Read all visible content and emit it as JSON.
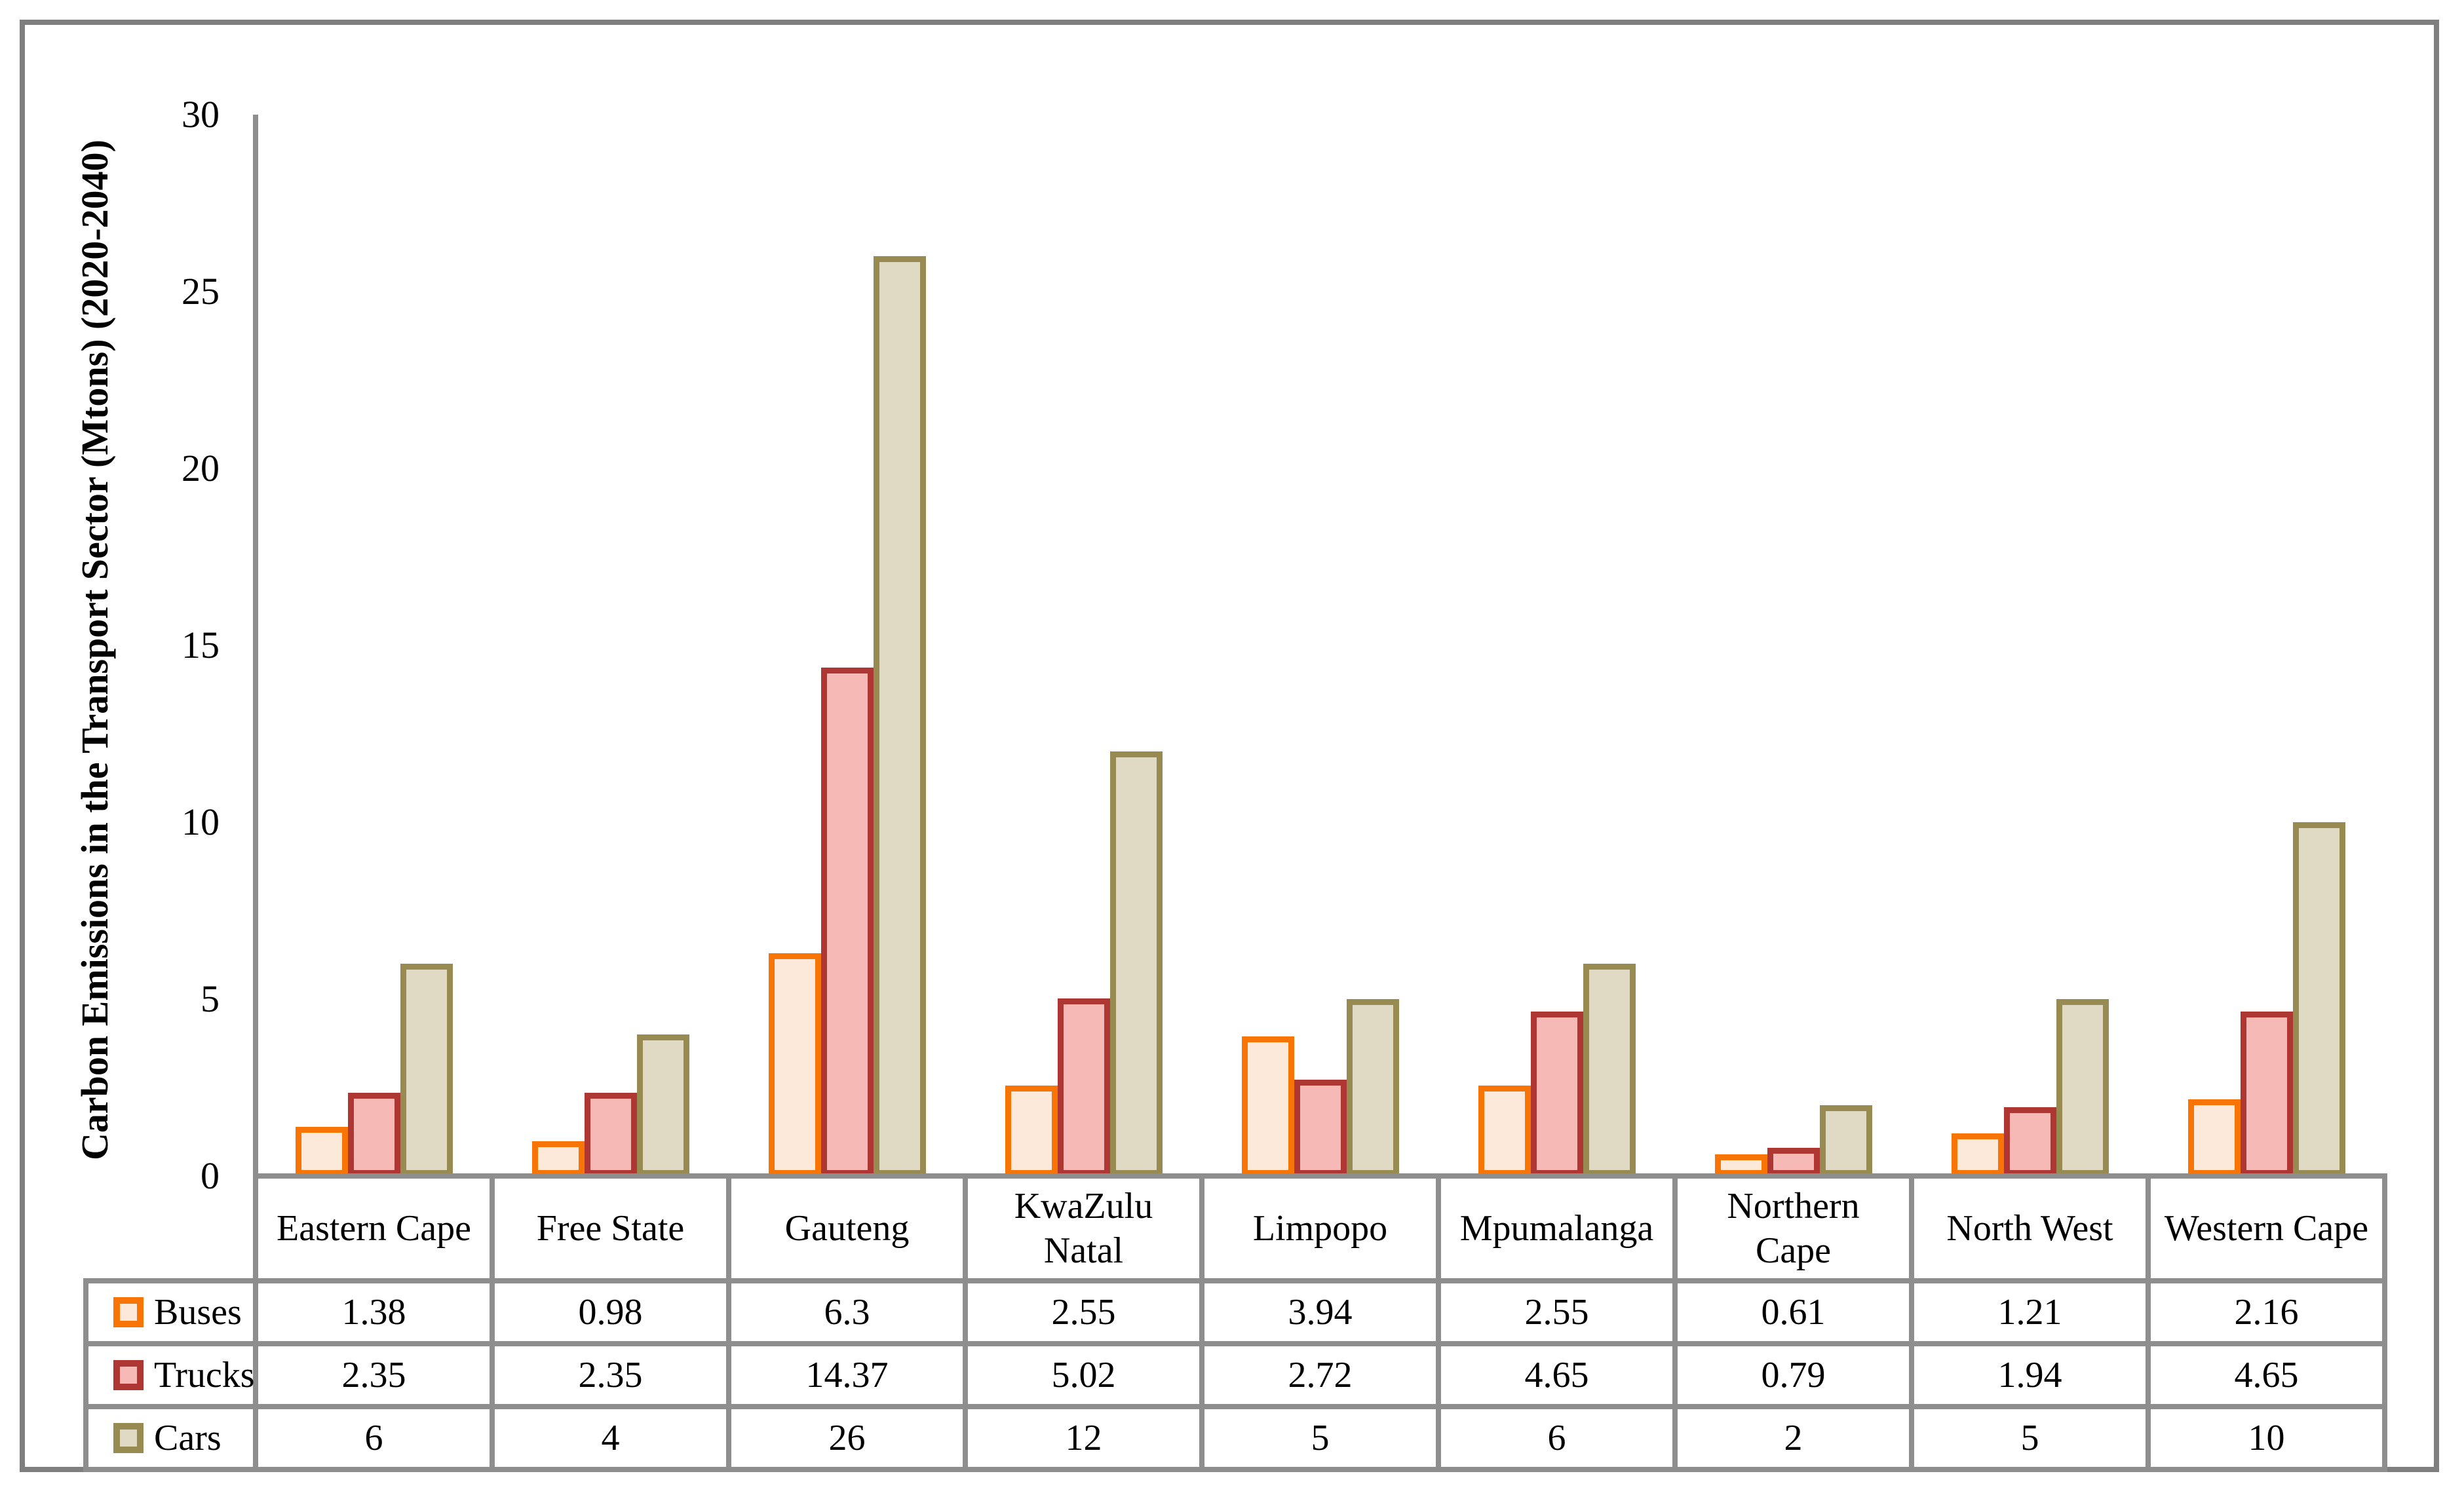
{
  "figure": {
    "y_axis_title": "Carbon Emissions in the Transport Sector (Mtons) (2020-2040)",
    "y_ticks": [
      0,
      5,
      10,
      15,
      20,
      25,
      30
    ],
    "category_labels": [
      "Eastern Cape",
      "Free State",
      "Gauteng",
      "KwaZulu\nNatal",
      "Limpopo",
      "Mpumalanga",
      "Northern\nCape",
      "North West",
      "Western Cape"
    ]
  },
  "chart_data": {
    "type": "bar",
    "title": "",
    "xlabel": "",
    "ylabel": "Carbon Emissions in the Transport Sector (Mtons) (2020-2040)",
    "ylim": [
      0,
      30
    ],
    "grid": false,
    "legend_position": "table-left",
    "categories": [
      "Eastern Cape",
      "Free State",
      "Gauteng",
      "KwaZulu Natal",
      "Limpopo",
      "Mpumalanga",
      "Northern Cape",
      "North West",
      "Western Cape"
    ],
    "series": [
      {
        "name": "Buses",
        "values": [
          1.38,
          0.98,
          6.3,
          2.55,
          3.94,
          2.55,
          0.61,
          1.21,
          2.16
        ],
        "border_color": "#f87505",
        "fill_color": "#fde9da"
      },
      {
        "name": "Trucks",
        "values": [
          2.35,
          2.35,
          14.37,
          5.02,
          2.72,
          4.65,
          0.79,
          1.94,
          4.65
        ],
        "border_color": "#ae3733",
        "fill_color": "#f6b9b5"
      },
      {
        "name": "Cars",
        "values": [
          6,
          4,
          26,
          12,
          5,
          6,
          2,
          5,
          10
        ],
        "border_color": "#988b52",
        "fill_color": "#e0dac4"
      }
    ]
  },
  "colors": {
    "table_line": "#8e8e8e",
    "outer_frame": "#7f7f7f",
    "text": "#000000",
    "background": "#ffffff"
  }
}
